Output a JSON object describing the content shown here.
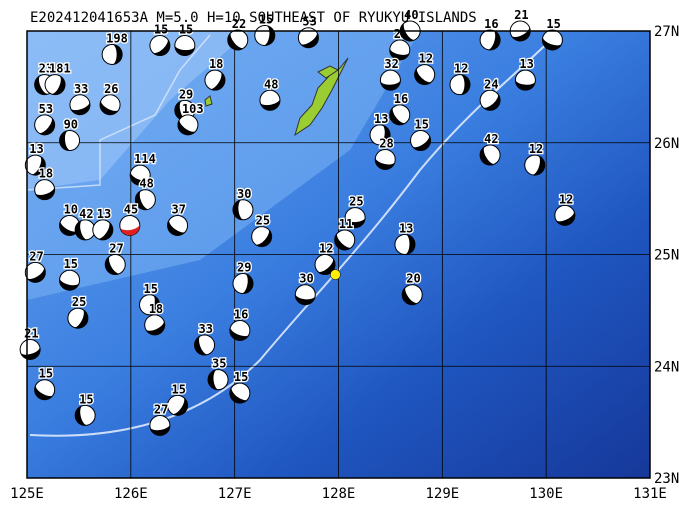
{
  "map": {
    "title": "E202412041653A M=5.0 H=10 SOUTHEAST OF RYUKYU ISLANDS",
    "lon_range": [
      125,
      131
    ],
    "lat_range": [
      23,
      27
    ],
    "lon_ticks": [
      {
        "value": 125,
        "label": "125E"
      },
      {
        "value": 126,
        "label": "126E"
      },
      {
        "value": 127,
        "label": "127E"
      },
      {
        "value": 128,
        "label": "128E"
      },
      {
        "value": 129,
        "label": "129E"
      },
      {
        "value": 130,
        "label": "130E"
      },
      {
        "value": 131,
        "label": "131E"
      }
    ],
    "lat_ticks": [
      {
        "value": 23,
        "label": "23N"
      },
      {
        "value": 24,
        "label": "24N"
      },
      {
        "value": 25,
        "label": "25N"
      },
      {
        "value": 26,
        "label": "26N"
      },
      {
        "value": 27,
        "label": "27N"
      }
    ],
    "epicenter": {
      "lon": 127.97,
      "lat": 24.82,
      "color": "#ffee00"
    },
    "events": [
      {
        "lon": 125.82,
        "lat": 26.79,
        "label": "198"
      },
      {
        "lon": 126.28,
        "lat": 26.87,
        "label": "15"
      },
      {
        "lon": 126.52,
        "lat": 26.87,
        "label": "15"
      },
      {
        "lon": 127.03,
        "lat": 26.92,
        "label": "22"
      },
      {
        "lon": 127.29,
        "lat": 26.96,
        "label": "15"
      },
      {
        "lon": 127.71,
        "lat": 26.94,
        "label": "53"
      },
      {
        "lon": 128.59,
        "lat": 26.83,
        "label": "27"
      },
      {
        "lon": 128.69,
        "lat": 27.0,
        "label": "40"
      },
      {
        "lon": 129.46,
        "lat": 26.92,
        "label": "16"
      },
      {
        "lon": 129.75,
        "lat": 27.0,
        "label": "21"
      },
      {
        "lon": 130.06,
        "lat": 26.92,
        "label": "15"
      },
      {
        "lon": 125.17,
        "lat": 26.52,
        "label": "23"
      },
      {
        "lon": 125.27,
        "lat": 26.52,
        "label": "181"
      },
      {
        "lon": 125.51,
        "lat": 26.34,
        "label": "33"
      },
      {
        "lon": 125.8,
        "lat": 26.34,
        "label": "26"
      },
      {
        "lon": 126.52,
        "lat": 26.29,
        "label": "29"
      },
      {
        "lon": 126.81,
        "lat": 26.56,
        "label": "18"
      },
      {
        "lon": 127.34,
        "lat": 26.38,
        "label": "48"
      },
      {
        "lon": 126.55,
        "lat": 26.16,
        "label": "103"
      },
      {
        "lon": 125.41,
        "lat": 26.02,
        "label": "90"
      },
      {
        "lon": 125.17,
        "lat": 26.16,
        "label": "53"
      },
      {
        "lon": 128.5,
        "lat": 26.56,
        "label": "32"
      },
      {
        "lon": 128.83,
        "lat": 26.61,
        "label": "12"
      },
      {
        "lon": 129.17,
        "lat": 26.52,
        "label": "12"
      },
      {
        "lon": 129.46,
        "lat": 26.38,
        "label": "24"
      },
      {
        "lon": 129.8,
        "lat": 26.56,
        "label": "13"
      },
      {
        "lon": 128.59,
        "lat": 26.25,
        "label": "16"
      },
      {
        "lon": 128.4,
        "lat": 26.07,
        "label": "13"
      },
      {
        "lon": 128.79,
        "lat": 26.02,
        "label": "15"
      },
      {
        "lon": 128.45,
        "lat": 25.85,
        "label": "28"
      },
      {
        "lon": 129.46,
        "lat": 25.89,
        "label": "42"
      },
      {
        "lon": 129.89,
        "lat": 25.8,
        "label": "12"
      },
      {
        "lon": 130.18,
        "lat": 25.35,
        "label": "12"
      },
      {
        "lon": 126.09,
        "lat": 25.71,
        "label": "114"
      },
      {
        "lon": 126.14,
        "lat": 25.49,
        "label": "48"
      },
      {
        "lon": 125.08,
        "lat": 25.8,
        "label": "13"
      },
      {
        "lon": 125.17,
        "lat": 25.58,
        "label": "18"
      },
      {
        "lon": 125.41,
        "lat": 25.26,
        "label": "10"
      },
      {
        "lon": 125.56,
        "lat": 25.22,
        "label": "42"
      },
      {
        "lon": 125.73,
        "lat": 25.22,
        "label": "13"
      },
      {
        "lon": 125.99,
        "lat": 25.26,
        "label": "45",
        "color": "#e02020"
      },
      {
        "lon": 126.45,
        "lat": 25.26,
        "label": "37"
      },
      {
        "lon": 127.08,
        "lat": 25.4,
        "label": "30"
      },
      {
        "lon": 127.26,
        "lat": 25.16,
        "label": "25"
      },
      {
        "lon": 128.16,
        "lat": 25.33,
        "label": "25"
      },
      {
        "lon": 128.06,
        "lat": 25.13,
        "label": "11"
      },
      {
        "lon": 128.64,
        "lat": 25.09,
        "label": "13"
      },
      {
        "lon": 127.87,
        "lat": 24.91,
        "label": "12"
      },
      {
        "lon": 127.68,
        "lat": 24.64,
        "label": "30"
      },
      {
        "lon": 128.71,
        "lat": 24.64,
        "label": "20"
      },
      {
        "lon": 127.08,
        "lat": 24.74,
        "label": "29"
      },
      {
        "lon": 125.08,
        "lat": 24.84,
        "label": "27"
      },
      {
        "lon": 125.41,
        "lat": 24.77,
        "label": "15"
      },
      {
        "lon": 125.85,
        "lat": 24.91,
        "label": "27"
      },
      {
        "lon": 126.18,
        "lat": 24.55,
        "label": "15"
      },
      {
        "lon": 126.23,
        "lat": 24.37,
        "label": "18"
      },
      {
        "lon": 127.05,
        "lat": 24.32,
        "label": "16"
      },
      {
        "lon": 126.71,
        "lat": 24.19,
        "label": "33"
      },
      {
        "lon": 125.49,
        "lat": 24.43,
        "label": "25"
      },
      {
        "lon": 125.03,
        "lat": 24.15,
        "label": "21"
      },
      {
        "lon": 125.17,
        "lat": 23.79,
        "label": "15"
      },
      {
        "lon": 125.56,
        "lat": 23.56,
        "label": "15"
      },
      {
        "lon": 126.45,
        "lat": 23.65,
        "label": "15"
      },
      {
        "lon": 126.28,
        "lat": 23.47,
        "label": "27"
      },
      {
        "lon": 127.05,
        "lat": 23.76,
        "label": "15"
      },
      {
        "lon": 126.84,
        "lat": 23.88,
        "label": "35"
      }
    ]
  }
}
